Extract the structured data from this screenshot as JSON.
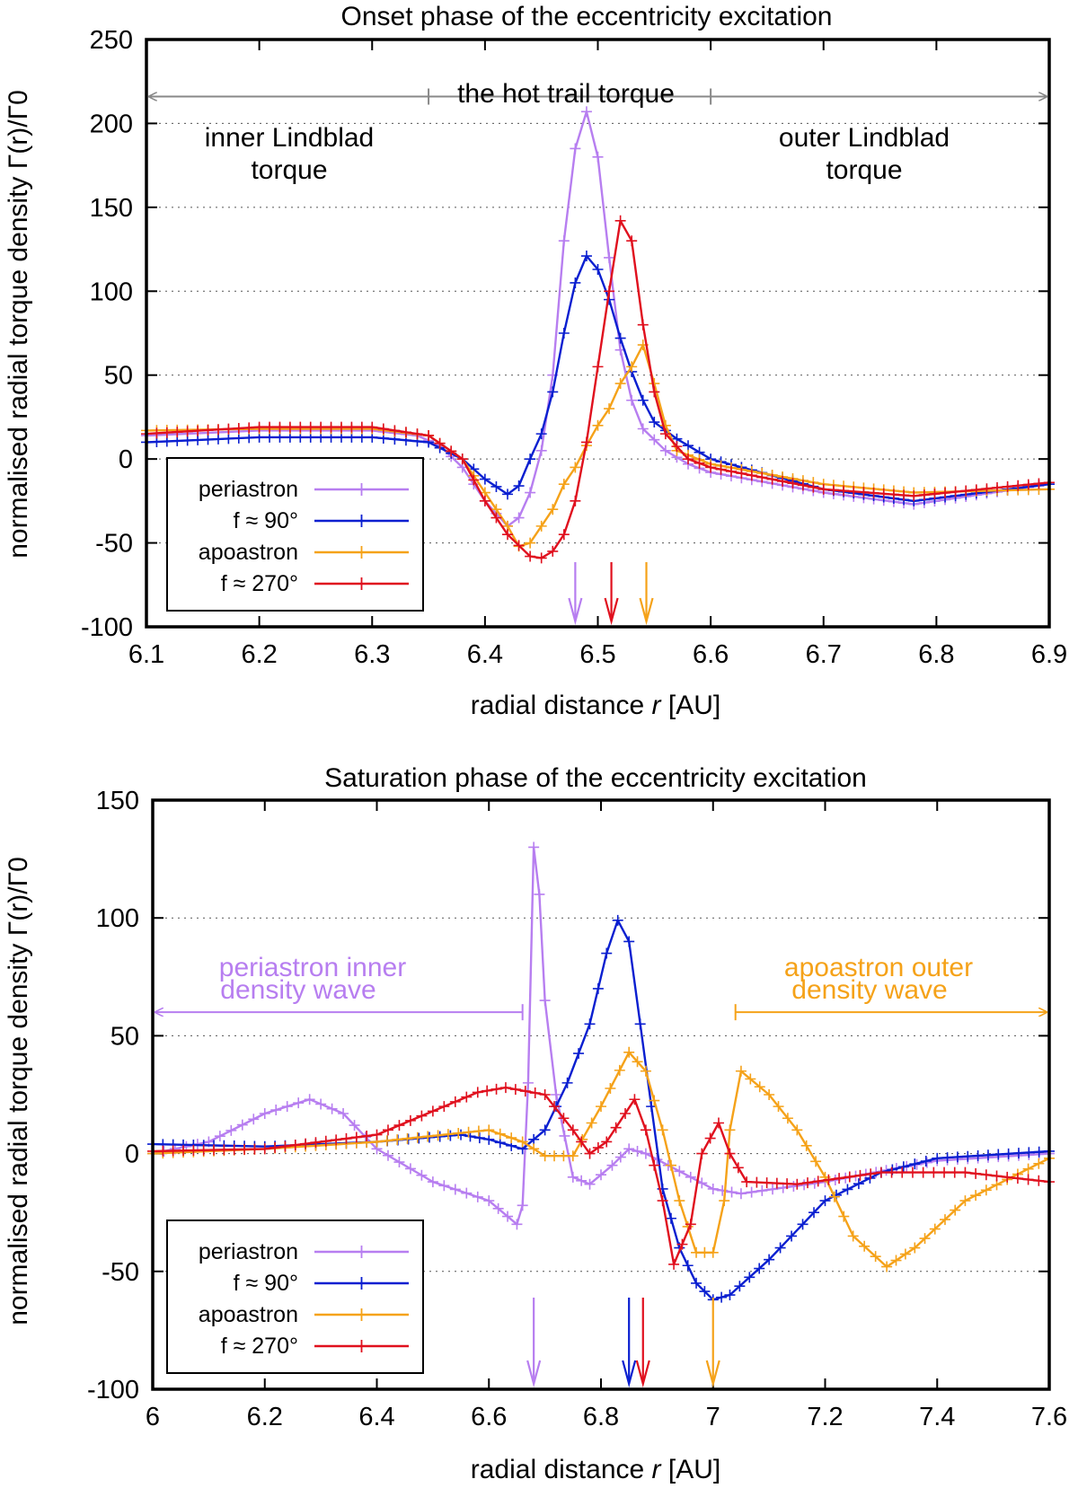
{
  "chart_data": [
    {
      "type": "line",
      "title": "Onset phase of the eccentricity excitation",
      "xlabel_pre": "radial distance",
      "xlabel_var": "r",
      "xlabel_post": "[AU]",
      "ylabel": "normalised radial torque density Γ(r)/Γ0",
      "xlim": [
        6.1,
        6.9
      ],
      "ylim": [
        -100,
        250
      ],
      "xticks": [
        6.1,
        6.2,
        6.3,
        6.4,
        6.5,
        6.6,
        6.7,
        6.8,
        6.9
      ],
      "xtick_labels": [
        "6.1",
        "6.2",
        "6.3",
        "6.4",
        "6.5",
        "6.6",
        "6.7",
        "6.8",
        "6.9"
      ],
      "yticks": [
        -100,
        -50,
        0,
        50,
        100,
        150,
        200,
        250
      ],
      "ytick_labels": [
        "-100",
        "-50",
        "0",
        "50",
        "100",
        "150",
        "200",
        "250"
      ],
      "grid": "horizontal dotted",
      "legend": {
        "position": "bottom-left",
        "entries": [
          "periastron",
          "f ≈ 90°",
          "apoastron",
          "f ≈ 270°"
        ]
      },
      "series": [
        {
          "name": "periastron",
          "color": "#b77ef0",
          "points": [
            [
              6.1,
              14
            ],
            [
              6.2,
              17
            ],
            [
              6.3,
              17
            ],
            [
              6.34,
              14
            ],
            [
              6.36,
              8
            ],
            [
              6.38,
              -5
            ],
            [
              6.4,
              -25
            ],
            [
              6.42,
              -40
            ],
            [
              6.43,
              -35
            ],
            [
              6.44,
              -20
            ],
            [
              6.45,
              5
            ],
            [
              6.46,
              50
            ],
            [
              6.47,
              130
            ],
            [
              6.48,
              185
            ],
            [
              6.49,
              207
            ],
            [
              6.5,
              180
            ],
            [
              6.51,
              120
            ],
            [
              6.52,
              65
            ],
            [
              6.53,
              35
            ],
            [
              6.54,
              18
            ],
            [
              6.56,
              5
            ],
            [
              6.58,
              -3
            ],
            [
              6.6,
              -8
            ],
            [
              6.7,
              -20
            ],
            [
              6.78,
              -27
            ],
            [
              6.9,
              -15
            ]
          ]
        },
        {
          "name": "f ≈ 90°",
          "color": "#0a1fd0",
          "points": [
            [
              6.1,
              10
            ],
            [
              6.2,
              13
            ],
            [
              6.3,
              13
            ],
            [
              6.35,
              10
            ],
            [
              6.38,
              0
            ],
            [
              6.4,
              -12
            ],
            [
              6.42,
              -21
            ],
            [
              6.43,
              -16
            ],
            [
              6.44,
              0
            ],
            [
              6.45,
              15
            ],
            [
              6.46,
              40
            ],
            [
              6.47,
              75
            ],
            [
              6.48,
              105
            ],
            [
              6.49,
              121
            ],
            [
              6.5,
              113
            ],
            [
              6.51,
              95
            ],
            [
              6.52,
              72
            ],
            [
              6.53,
              52
            ],
            [
              6.54,
              35
            ],
            [
              6.55,
              22
            ],
            [
              6.57,
              12
            ],
            [
              6.6,
              0
            ],
            [
              6.7,
              -18
            ],
            [
              6.78,
              -25
            ],
            [
              6.9,
              -15
            ]
          ]
        },
        {
          "name": "apoastron",
          "color": "#f5a219",
          "points": [
            [
              6.1,
              17
            ],
            [
              6.2,
              18
            ],
            [
              6.3,
              18
            ],
            [
              6.35,
              14
            ],
            [
              6.38,
              0
            ],
            [
              6.4,
              -20
            ],
            [
              6.42,
              -40
            ],
            [
              6.43,
              -52
            ],
            [
              6.44,
              -50
            ],
            [
              6.45,
              -40
            ],
            [
              6.46,
              -30
            ],
            [
              6.47,
              -15
            ],
            [
              6.48,
              -5
            ],
            [
              6.49,
              8
            ],
            [
              6.5,
              20
            ],
            [
              6.51,
              30
            ],
            [
              6.52,
              45
            ],
            [
              6.53,
              55
            ],
            [
              6.54,
              68
            ],
            [
              6.55,
              45
            ],
            [
              6.56,
              20
            ],
            [
              6.57,
              5
            ],
            [
              6.6,
              -3
            ],
            [
              6.7,
              -15
            ],
            [
              6.78,
              -20
            ],
            [
              6.9,
              -18
            ]
          ]
        },
        {
          "name": "f ≈ 270°",
          "color": "#e0101e",
          "points": [
            [
              6.1,
              15
            ],
            [
              6.2,
              19
            ],
            [
              6.3,
              19
            ],
            [
              6.35,
              14
            ],
            [
              6.38,
              0
            ],
            [
              6.4,
              -25
            ],
            [
              6.42,
              -45
            ],
            [
              6.44,
              -58
            ],
            [
              6.45,
              -59
            ],
            [
              6.46,
              -55
            ],
            [
              6.47,
              -45
            ],
            [
              6.48,
              -25
            ],
            [
              6.49,
              10
            ],
            [
              6.5,
              55
            ],
            [
              6.51,
              100
            ],
            [
              6.52,
              142
            ],
            [
              6.53,
              130
            ],
            [
              6.54,
              80
            ],
            [
              6.55,
              40
            ],
            [
              6.56,
              15
            ],
            [
              6.58,
              0
            ],
            [
              6.6,
              -5
            ],
            [
              6.7,
              -18
            ],
            [
              6.78,
              -22
            ],
            [
              6.9,
              -14
            ]
          ]
        }
      ],
      "arrows": [
        {
          "series": "periastron",
          "x": 6.48,
          "color": "#b77ef0"
        },
        {
          "series": "f ≈ 270°",
          "x": 6.512,
          "color": "#e0101e"
        },
        {
          "series": "apoastron",
          "x": 6.543,
          "color": "#f5a219"
        }
      ],
      "annotations": {
        "range_label": "the hot trail torque",
        "inner_label_1": "inner Lindblad",
        "inner_label_2": "torque",
        "outer_label_1": "outer Lindblad",
        "outer_label_2": "torque",
        "range_color": "#888888",
        "range_ticks_x": [
          6.35,
          6.6
        ],
        "range_y": 216
      }
    },
    {
      "type": "line",
      "title": "Saturation phase of the eccentricity excitation",
      "xlabel_pre": "radial distance",
      "xlabel_var": "r",
      "xlabel_post": "[AU]",
      "ylabel": "normalised radial torque density Γ(r)/Γ0",
      "xlim": [
        6.0,
        7.6
      ],
      "ylim": [
        -100,
        150
      ],
      "xticks": [
        6.0,
        6.2,
        6.4,
        6.6,
        6.8,
        7.0,
        7.2,
        7.4,
        7.6
      ],
      "xtick_labels": [
        "6",
        "6.2",
        "6.4",
        "6.6",
        "6.8",
        "7",
        "7.2",
        "7.4",
        "7.6"
      ],
      "yticks": [
        -100,
        -50,
        0,
        50,
        100,
        150
      ],
      "ytick_labels": [
        "-100",
        "-50",
        "0",
        "50",
        "100",
        "150"
      ],
      "grid": "horizontal dotted",
      "legend": {
        "position": "bottom-left",
        "entries": [
          "periastron",
          "f ≈ 90°",
          "apoastron",
          "f ≈ 270°"
        ]
      },
      "series": [
        {
          "name": "periastron",
          "color": "#b77ef0",
          "points": [
            [
              6.0,
              0
            ],
            [
              6.1,
              5
            ],
            [
              6.2,
              17
            ],
            [
              6.28,
              23
            ],
            [
              6.34,
              17
            ],
            [
              6.4,
              2
            ],
            [
              6.5,
              -12
            ],
            [
              6.6,
              -20
            ],
            [
              6.65,
              -30
            ],
            [
              6.66,
              -22
            ],
            [
              6.67,
              30
            ],
            [
              6.68,
              130
            ],
            [
              6.69,
              110
            ],
            [
              6.7,
              65
            ],
            [
              6.72,
              25
            ],
            [
              6.75,
              -10
            ],
            [
              6.78,
              -13
            ],
            [
              6.82,
              -5
            ],
            [
              6.85,
              2
            ],
            [
              6.88,
              0
            ],
            [
              6.92,
              -5
            ],
            [
              7.0,
              -15
            ],
            [
              7.05,
              -17
            ],
            [
              7.2,
              -12
            ],
            [
              7.4,
              -3
            ],
            [
              7.6,
              0
            ]
          ]
        },
        {
          "name": "f ≈ 90°",
          "color": "#0a1fd0",
          "points": [
            [
              6.0,
              4
            ],
            [
              6.2,
              3
            ],
            [
              6.4,
              5
            ],
            [
              6.55,
              8
            ],
            [
              6.6,
              6
            ],
            [
              6.66,
              2
            ],
            [
              6.7,
              10
            ],
            [
              6.74,
              30
            ],
            [
              6.78,
              55
            ],
            [
              6.81,
              85
            ],
            [
              6.83,
              99
            ],
            [
              6.85,
              90
            ],
            [
              6.87,
              55
            ],
            [
              6.89,
              20
            ],
            [
              6.91,
              -15
            ],
            [
              6.94,
              -40
            ],
            [
              6.97,
              -55
            ],
            [
              7.0,
              -62
            ],
            [
              7.03,
              -60
            ],
            [
              7.1,
              -45
            ],
            [
              7.2,
              -20
            ],
            [
              7.3,
              -8
            ],
            [
              7.4,
              -2
            ],
            [
              7.6,
              1
            ]
          ]
        },
        {
          "name": "apoastron",
          "color": "#f5a219",
          "points": [
            [
              6.0,
              0
            ],
            [
              6.2,
              2
            ],
            [
              6.4,
              5
            ],
            [
              6.6,
              10
            ],
            [
              6.66,
              5
            ],
            [
              6.7,
              -1
            ],
            [
              6.75,
              -1
            ],
            [
              6.8,
              20
            ],
            [
              6.85,
              43
            ],
            [
              6.88,
              35
            ],
            [
              6.91,
              10
            ],
            [
              6.94,
              -20
            ],
            [
              6.97,
              -42
            ],
            [
              7.0,
              -42
            ],
            [
              7.02,
              -20
            ],
            [
              7.03,
              10
            ],
            [
              7.05,
              35
            ],
            [
              7.1,
              25
            ],
            [
              7.15,
              10
            ],
            [
              7.2,
              -10
            ],
            [
              7.25,
              -35
            ],
            [
              7.31,
              -48
            ],
            [
              7.36,
              -40
            ],
            [
              7.45,
              -20
            ],
            [
              7.6,
              -2
            ]
          ]
        },
        {
          "name": "f ≈ 270°",
          "color": "#e0101e",
          "points": [
            [
              6.0,
              1
            ],
            [
              6.2,
              2
            ],
            [
              6.4,
              8
            ],
            [
              6.5,
              18
            ],
            [
              6.58,
              26
            ],
            [
              6.63,
              28
            ],
            [
              6.7,
              25
            ],
            [
              6.75,
              10
            ],
            [
              6.78,
              0
            ],
            [
              6.81,
              5
            ],
            [
              6.86,
              23
            ],
            [
              6.88,
              10
            ],
            [
              6.91,
              -20
            ],
            [
              6.93,
              -47
            ],
            [
              6.96,
              -30
            ],
            [
              6.98,
              0
            ],
            [
              7.01,
              13
            ],
            [
              7.03,
              0
            ],
            [
              7.06,
              -12
            ],
            [
              7.15,
              -13
            ],
            [
              7.3,
              -8
            ],
            [
              7.45,
              -8
            ],
            [
              7.6,
              -12
            ]
          ]
        }
      ],
      "arrows": [
        {
          "series": "periastron",
          "x": 6.68,
          "color": "#b77ef0"
        },
        {
          "series": "f ≈ 90°",
          "x": 6.85,
          "color": "#0a1fd0"
        },
        {
          "series": "f ≈ 270°",
          "x": 6.875,
          "color": "#e0101e"
        },
        {
          "series": "apoastron",
          "x": 7.0,
          "color": "#f5a219"
        }
      ],
      "annotations": {
        "left_label_1": "periastron inner",
        "left_label_2": "density wave",
        "right_label_1": "apoastron outer",
        "right_label_2": "density wave",
        "left_color": "#b77ef0",
        "right_color": "#f5a219",
        "left_range": [
          6.0,
          6.66
        ],
        "right_range": [
          7.04,
          7.6
        ],
        "range_y": 60
      }
    }
  ]
}
